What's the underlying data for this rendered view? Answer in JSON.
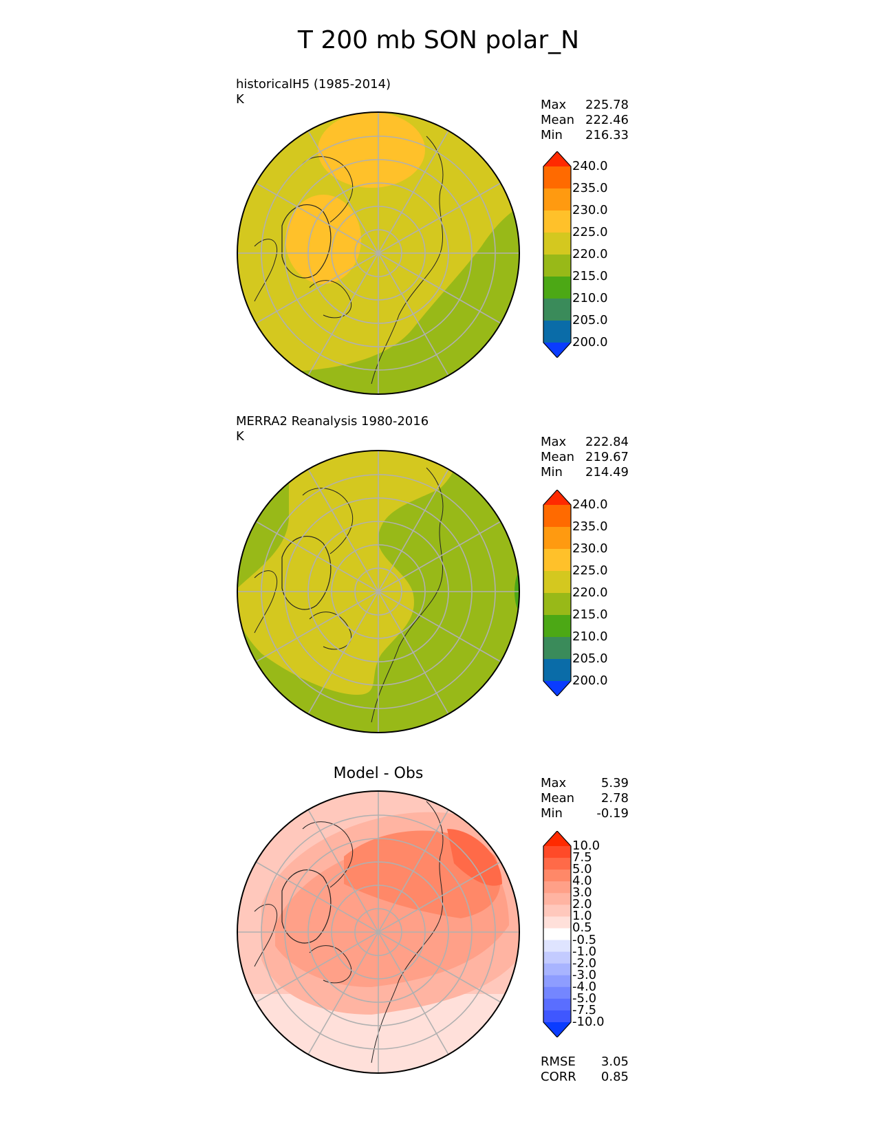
{
  "title": "T 200 mb SON polar_N",
  "panels": [
    {
      "title": "historicalH5 (1985-2014)",
      "units": "K",
      "stats": [
        {
          "label": "Max",
          "value": "225.78"
        },
        {
          "label": "Mean",
          "value": "222.46"
        },
        {
          "label": "Min",
          "value": "216.33"
        }
      ],
      "colorbar": {
        "levels": [
          "240.0",
          "235.0",
          "230.0",
          "225.0",
          "220.0",
          "215.0",
          "210.0",
          "205.0",
          "200.0"
        ],
        "colors": [
          "#ff2a00",
          "#ff6a00",
          "#ff9a10",
          "#ffc12a",
          "#d4c81f",
          "#98b918",
          "#4ca815",
          "#3a8b5a",
          "#0a6ca8",
          "#0a3cff"
        ]
      }
    },
    {
      "title": "MERRA2 Reanalysis 1980-2016",
      "units": "K",
      "stats": [
        {
          "label": "Max",
          "value": "222.84"
        },
        {
          "label": "Mean",
          "value": "219.67"
        },
        {
          "label": "Min",
          "value": "214.49"
        }
      ],
      "colorbar": {
        "levels": [
          "240.0",
          "235.0",
          "230.0",
          "225.0",
          "220.0",
          "215.0",
          "210.0",
          "205.0",
          "200.0"
        ],
        "colors": [
          "#ff2a00",
          "#ff6a00",
          "#ff9a10",
          "#ffc12a",
          "#d4c81f",
          "#98b918",
          "#4ca815",
          "#3a8b5a",
          "#0a6ca8",
          "#0a3cff"
        ]
      }
    },
    {
      "title": "Model - Obs",
      "stats": [
        {
          "label": "Max",
          "value": "5.39"
        },
        {
          "label": "Mean",
          "value": "2.78"
        },
        {
          "label": "Min",
          "value": "-0.19"
        }
      ],
      "colorbar": {
        "levels": [
          "10.0",
          "7.5",
          "5.0",
          "4.0",
          "3.0",
          "2.0",
          "1.0",
          "0.5",
          "-0.5",
          "-1.0",
          "-2.0",
          "-3.0",
          "-4.0",
          "-5.0",
          "-7.5",
          "-10.0"
        ],
        "colors": [
          "#ff2a00",
          "#ff4a28",
          "#ff6a48",
          "#ff8868",
          "#ffa088",
          "#ffb4a2",
          "#ffc8bc",
          "#ffe0da",
          "#ffffff",
          "#dfe4ff",
          "#c3cbff",
          "#a8b4ff",
          "#8e9dff",
          "#7486ff",
          "#5a6eff",
          "#3f57ff",
          "#0a3cff"
        ]
      },
      "bottom_stats": [
        {
          "label": "RMSE",
          "value": "3.05"
        },
        {
          "label": "CORR",
          "value": "0.85"
        }
      ]
    }
  ]
}
